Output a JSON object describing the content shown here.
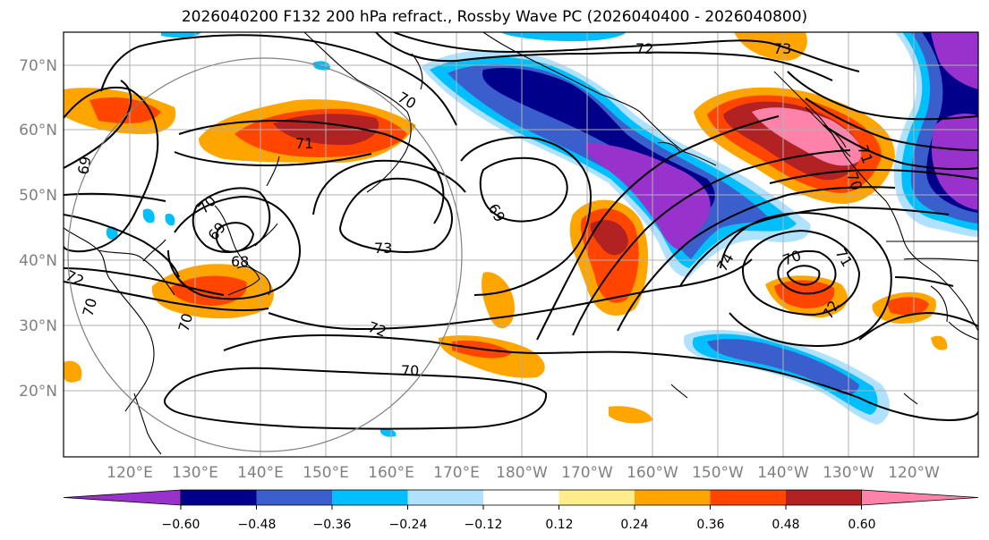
{
  "title": "2026040200 F132 200 hPa refract., Rossby Wave PC (2026040400 - 2026040800)",
  "map": {
    "lat_labels": [
      "70°N",
      "60°N",
      "50°N",
      "40°N",
      "30°N",
      "20°N"
    ],
    "lon_labels": [
      "120°E",
      "130°E",
      "140°E",
      "150°E",
      "160°E",
      "170°E",
      "180°W",
      "170°W",
      "160°W",
      "150°W",
      "140°W",
      "130°W",
      "120°W"
    ],
    "contour_labels": [
      "72",
      "73",
      "70",
      "71",
      "69",
      "69",
      "70",
      "69",
      "68",
      "73",
      "72",
      "70",
      "72",
      "70",
      "70",
      "74",
      "70",
      "71",
      "72",
      "71",
      "70"
    ]
  },
  "colorbar": {
    "colors": [
      "#9932cc",
      "#00008b",
      "#3a5fcd",
      "#00bfff",
      "#b0e2ff",
      "#ffffff",
      "#ffec8b",
      "#ffa500",
      "#ff4500",
      "#b22222",
      "#ff82ab"
    ],
    "tick_labels": [
      "−0.60",
      "−0.48",
      "−0.36",
      "−0.24",
      "−0.12",
      "0.12",
      "0.24",
      "0.36",
      "0.48",
      "0.60"
    ]
  }
}
